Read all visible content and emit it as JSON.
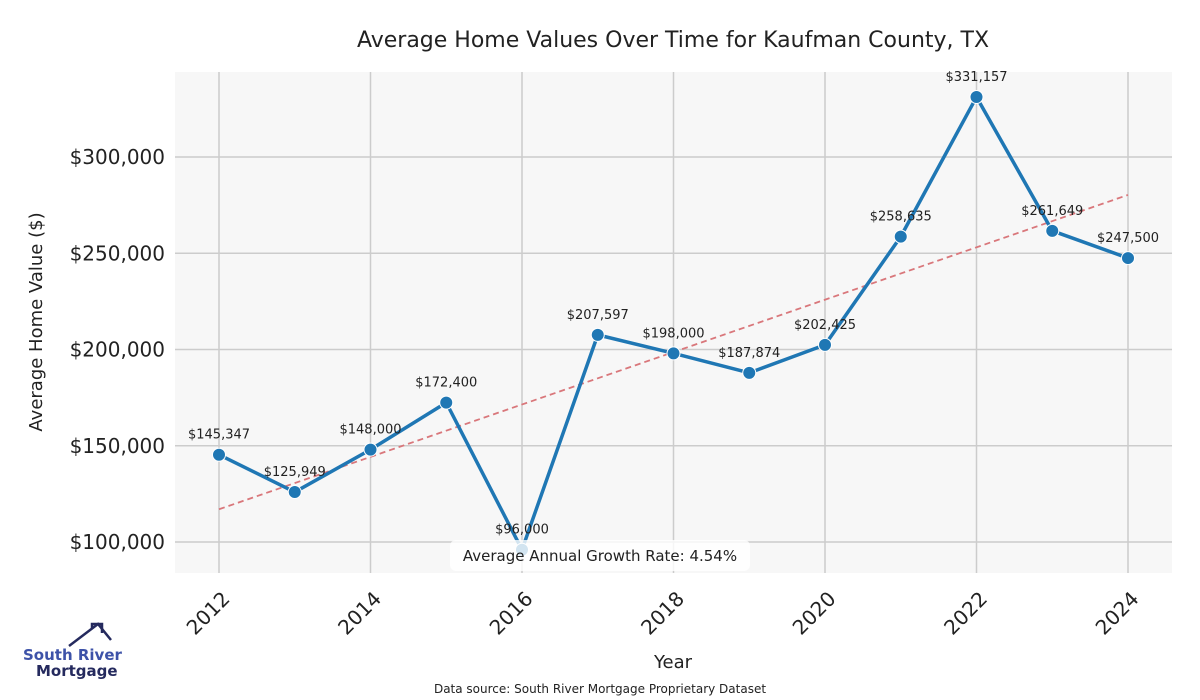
{
  "chart_data": {
    "type": "line",
    "title": "Average Home Values Over Time for Kaufman County, TX",
    "xlabel": "Year",
    "ylabel": "Average Home Value ($)",
    "x": [
      2012,
      2013,
      2014,
      2015,
      2016,
      2017,
      2018,
      2019,
      2020,
      2021,
      2022,
      2023,
      2024
    ],
    "values": [
      145347,
      125949,
      148000,
      172400,
      96000,
      207597,
      198000,
      187874,
      202425,
      258635,
      331157,
      261649,
      247500
    ],
    "data_labels": [
      "$145,347",
      "$125,949",
      "$148,000",
      "$172,400",
      "$96,000",
      "$207,597",
      "$198,000",
      "$187,874",
      "$202,425",
      "$258,635",
      "$331,157",
      "$261,649",
      "$247,500"
    ],
    "x_ticks": [
      "2012",
      "2014",
      "2016",
      "2018",
      "2020",
      "2022",
      "2024"
    ],
    "y_ticks": [
      {
        "value": 100000,
        "label": "$100,000"
      },
      {
        "value": 150000,
        "label": "$150,000"
      },
      {
        "value": 200000,
        "label": "$200,000"
      },
      {
        "value": 250000,
        "label": "$250,000"
      },
      {
        "value": 300000,
        "label": "$300,000"
      }
    ],
    "xlim": [
      2011.4,
      2024.6
    ],
    "ylim": [
      84000,
      344000
    ],
    "trendline": {
      "x": [
        2012,
        2024
      ],
      "y": [
        117000,
        280300
      ],
      "style": "dashed"
    },
    "grid": true,
    "annotation": "Average Annual Growth Rate: 4.54%",
    "colors": {
      "line": "#1f77b4",
      "trend": "#d9777b",
      "background": "#f7f7f7",
      "grid": "#cccccc"
    }
  },
  "logo": {
    "line1": "South River",
    "line2": "Mortgage"
  },
  "source": "Data source: South River Mortgage Proprietary Dataset"
}
